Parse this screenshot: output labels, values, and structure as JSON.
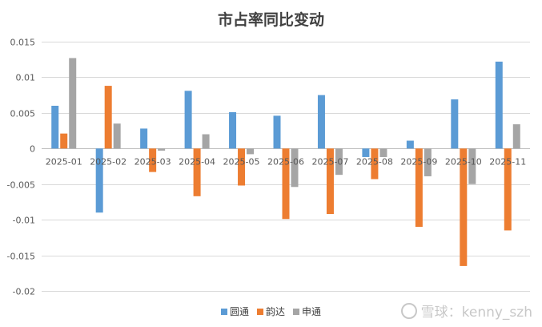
{
  "chart_data": {
    "type": "bar",
    "title": "市占率同比变动",
    "categories": [
      "2025-01",
      "2025-02",
      "2025-03",
      "2025-04",
      "2025-05",
      "2025-06",
      "2025-07",
      "2025-08",
      "2025-09",
      "2025-10",
      "2025-11"
    ],
    "series": [
      {
        "name": "圆通",
        "color": "#5b9bd5",
        "values": [
          0.006,
          -0.009,
          0.0028,
          0.0081,
          0.0051,
          0.0046,
          0.0075,
          -0.0012,
          0.0011,
          0.0069,
          0.0122
        ]
      },
      {
        "name": "韵达",
        "color": "#ed7d31",
        "values": [
          0.0021,
          0.0088,
          -0.0033,
          -0.0067,
          -0.0052,
          -0.0099,
          -0.0092,
          -0.0043,
          -0.011,
          -0.0165,
          -0.0115
        ]
      },
      {
        "name": "申通",
        "color": "#a5a5a5",
        "values": [
          0.0127,
          0.0035,
          -0.0003,
          0.002,
          -0.0008,
          -0.0054,
          -0.0037,
          -0.0012,
          -0.0039,
          -0.005,
          0.0034
        ]
      }
    ],
    "ylim": [
      -0.02,
      0.015
    ],
    "ytick_labels": [
      "0.015",
      "0.01",
      "0.005",
      "0",
      "-0.005",
      "-0.01",
      "-0.015",
      "-0.02"
    ],
    "ytick_values": [
      0.015,
      0.01,
      0.005,
      0,
      -0.005,
      -0.01,
      -0.015,
      -0.02
    ],
    "grid": true,
    "legend_position": "bottom"
  },
  "watermark": {
    "text": "雪球：kenny_szh"
  }
}
